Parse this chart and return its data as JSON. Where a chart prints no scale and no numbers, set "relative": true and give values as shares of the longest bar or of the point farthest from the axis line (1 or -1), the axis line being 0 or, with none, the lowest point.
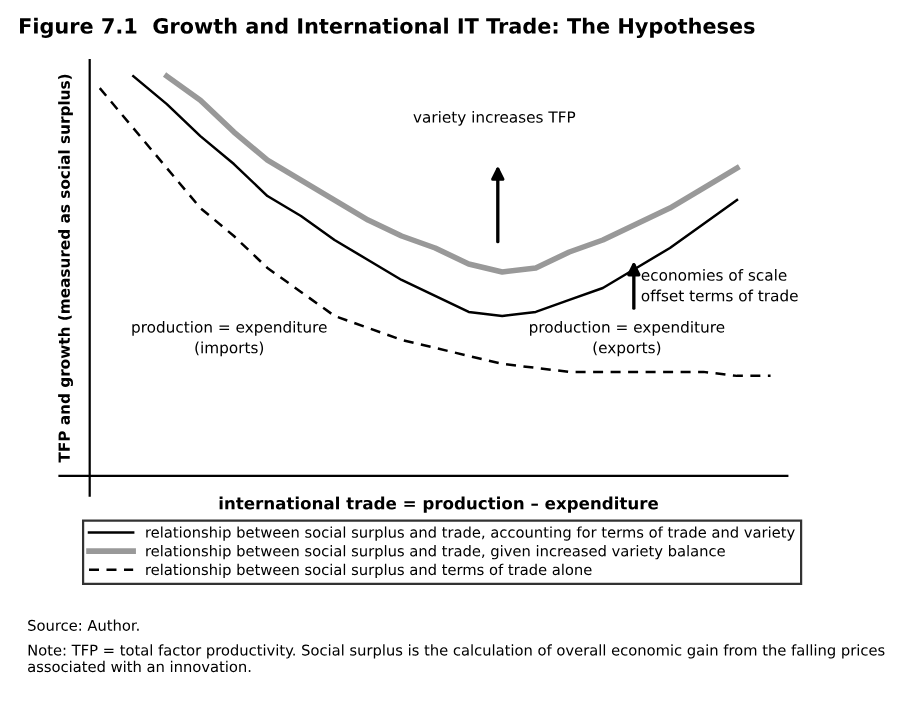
{
  "chart_data": {
    "type": "line",
    "relative": true,
    "title": "Figure 7.1  Growth and International IT Trade: The Hypotheses",
    "xlabel": "international trade = production – expenditure",
    "ylabel": "TFP and growth (measured as social surplus)",
    "categories": [
      null,
      null,
      null,
      null,
      null,
      null,
      null,
      null,
      null,
      null,
      null,
      null,
      null,
      null,
      null,
      null,
      null,
      null,
      null,
      null,
      null
    ],
    "series": [
      {
        "name": "relationship between social surplus and trade, accounting for terms of trade and variety",
        "color": "#000000",
        "line_style": "solid",
        "values": [
          null,
          1.0,
          0.93,
          0.85,
          0.78,
          0.7,
          0.65,
          0.59,
          0.54,
          0.49,
          0.45,
          0.41,
          0.4,
          0.41,
          0.44,
          0.47,
          0.52,
          0.57,
          0.63,
          0.69,
          null
        ]
      },
      {
        "name": "relationship between social surplus and trade, given increased variety balance",
        "color": "#999999",
        "line_style": "solid",
        "values": [
          null,
          null,
          1.0,
          0.94,
          0.86,
          0.79,
          0.74,
          0.69,
          0.64,
          0.6,
          0.57,
          0.53,
          0.51,
          0.52,
          0.56,
          0.59,
          0.63,
          0.67,
          0.72,
          0.77,
          null
        ]
      },
      {
        "name": "relationship between social surplus and terms of trade alone",
        "color": "#000000",
        "line_style": "dashed",
        "values": [
          0.97,
          0.87,
          0.77,
          0.67,
          0.6,
          0.52,
          0.46,
          0.4,
          0.37,
          0.34,
          0.32,
          0.3,
          0.28,
          0.27,
          0.26,
          0.26,
          0.26,
          0.26,
          0.26,
          0.25,
          0.25
        ]
      }
    ],
    "annotations": [
      "variety increases TFP",
      "economies of scale\noffset terms of trade",
      "production = expenditure\n(imports)",
      "production = expenditure\n(exports)",
      "Source: Author.",
      "Note: TFP = total factor productivity. Social surplus is the calculation of overall economic gain from the falling prices associated with an innovation."
    ],
    "legend": "bottom",
    "grid": false,
    "marker": "none"
  }
}
